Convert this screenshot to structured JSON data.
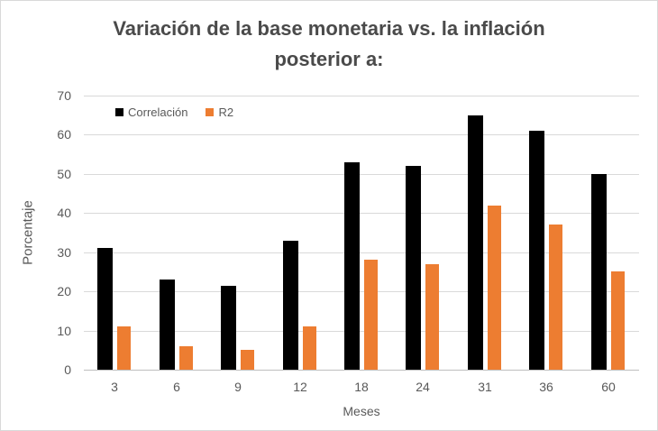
{
  "title": {
    "line1": "Variación de la base monetaria vs. la inflación",
    "line2": "posterior a:"
  },
  "chart_data": {
    "type": "bar",
    "title": "Variación de la base monetaria vs. la inflación posterior a:",
    "categories": [
      "3",
      "6",
      "9",
      "12",
      "18",
      "24",
      "31",
      "36",
      "60"
    ],
    "series": [
      {
        "name": "Correlación",
        "color": "#000000",
        "values": [
          31,
          23,
          21.5,
          33,
          53,
          52,
          65,
          61,
          50
        ]
      },
      {
        "name": "R2",
        "color": "#ED7D31",
        "values": [
          11,
          6,
          5,
          11,
          28,
          27,
          42,
          37,
          25
        ]
      }
    ],
    "xlabel": "Meses",
    "ylabel": "Porcentaje",
    "ylim": [
      0,
      70
    ],
    "yticks": [
      0,
      10,
      20,
      30,
      40,
      50,
      60,
      70
    ],
    "grid": true,
    "legend_position": "top-left-inside"
  },
  "colors": {
    "series_correlacion": "#000000",
    "series_r2": "#ED7D31",
    "gridline": "#d9d9d9",
    "axis_line": "#bfbfbf",
    "text": "#595959",
    "title_text": "#4a4a4a",
    "frame_border": "#d9d9d9",
    "background": "#ffffff"
  }
}
